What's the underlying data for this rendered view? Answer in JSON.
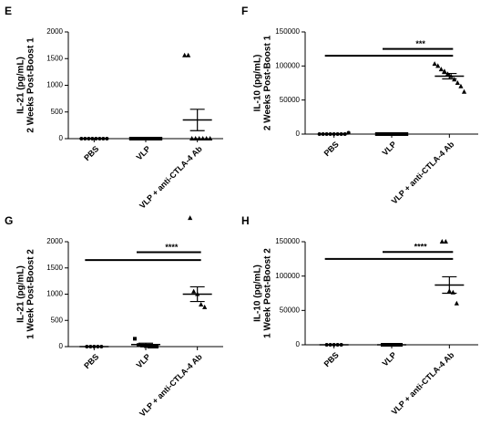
{
  "chart_data": [
    {
      "type": "dot",
      "panel": "E",
      "ylabel": [
        "IL-21 (pg/mL)",
        "2 Weeks Post-Boost 1"
      ],
      "categories": [
        "PBS",
        "VLP",
        "VLP + anti-CTLA-4 Ab"
      ],
      "markers": [
        "circle",
        "square",
        "triangle"
      ],
      "color": "#000000",
      "values": [
        [
          0,
          0,
          0,
          0,
          0,
          0,
          0,
          0
        ],
        [
          0,
          0,
          0,
          0,
          0,
          0,
          0,
          0,
          0,
          0
        ],
        [
          1560,
          1560,
          0,
          0,
          0,
          0,
          0,
          0
        ]
      ],
      "means": [
        0,
        0,
        350
      ],
      "errors": [
        0,
        0,
        200
      ],
      "ylim": [
        0,
        2000
      ],
      "yticks": [
        0,
        500,
        1000,
        1500,
        2000
      ],
      "significance": []
    },
    {
      "type": "dot",
      "panel": "F",
      "ylabel": [
        "IL-10 (pg/mL)",
        "2 Weeks Post-Boost 1"
      ],
      "categories": [
        "PBS",
        "VLP",
        "VLP + anti-CTLA-4 Ab"
      ],
      "markers": [
        "circle",
        "square",
        "triangle"
      ],
      "color": "#000000",
      "values": [
        [
          0,
          0,
          0,
          0,
          0,
          0,
          0,
          0,
          2000
        ],
        [
          0,
          0,
          0,
          0,
          0,
          0,
          0,
          0,
          0,
          0
        ],
        [
          103000,
          100000,
          95000,
          92000,
          88000,
          85000,
          80000,
          75000,
          70000,
          62000
        ]
      ],
      "means": [
        200,
        0,
        85000
      ],
      "errors": [
        200,
        0,
        4000
      ],
      "ylim": [
        0,
        150000
      ],
      "yticks": [
        0,
        50000,
        100000,
        150000
      ],
      "significance": [
        {
          "from": 0,
          "to": 2,
          "y": 115000
        },
        {
          "from": 1,
          "to": 2,
          "y": 125000,
          "label": "***"
        }
      ]
    },
    {
      "type": "dot",
      "panel": "G",
      "ylabel": [
        "IL-21 (pg/mL)",
        "1 Week Post-Boost 2"
      ],
      "categories": [
        "PBS",
        "VLP",
        "VLP + anti-CTLA-4 Ab"
      ],
      "markers": [
        "circle",
        "square",
        "triangle"
      ],
      "color": "#000000",
      "values": [
        [
          0,
          0,
          0,
          0,
          0
        ],
        [
          150,
          30,
          20,
          10,
          0,
          0,
          0
        ],
        [
          2450,
          1050,
          1000,
          800,
          750
        ]
      ],
      "means": [
        0,
        40,
        1000
      ],
      "errors": [
        0,
        25,
        140
      ],
      "ylim": [
        0,
        2000
      ],
      "yticks": [
        0,
        500,
        1000,
        1500,
        2000
      ],
      "significance": [
        {
          "from": 0,
          "to": 2,
          "y": 1650
        },
        {
          "from": 1,
          "to": 2,
          "y": 1800,
          "label": "****"
        }
      ]
    },
    {
      "type": "dot",
      "panel": "H",
      "ylabel": [
        "IL-10 (pg/mL)",
        "1 Week Post-Boost 2"
      ],
      "categories": [
        "PBS",
        "VLP",
        "VLP + anti-CTLA-4 Ab"
      ],
      "markers": [
        "circle",
        "square",
        "triangle"
      ],
      "color": "#000000",
      "values": [
        [
          0,
          0,
          0,
          0,
          0
        ],
        [
          0,
          0,
          0,
          0,
          0,
          0
        ],
        [
          150000,
          150000,
          78000,
          76000,
          60000
        ]
      ],
      "means": [
        0,
        0,
        87000
      ],
      "errors": [
        0,
        0,
        12000
      ],
      "ylim": [
        0,
        150000
      ],
      "yticks": [
        0,
        50000,
        100000,
        150000
      ],
      "significance": [
        {
          "from": 0,
          "to": 2,
          "y": 125000
        },
        {
          "from": 1,
          "to": 2,
          "y": 135000,
          "label": "****"
        }
      ]
    }
  ]
}
